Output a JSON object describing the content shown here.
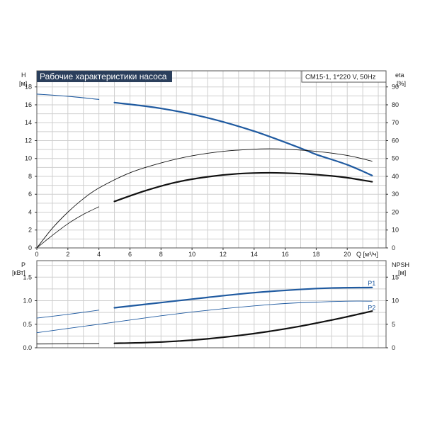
{
  "chart_data": [
    {
      "type": "line",
      "title": "Рабочие характеристики насоса",
      "info": "CM15-1, 1*220 V, 50Hz",
      "x_label": "Q [м³/ч]",
      "y_left_label": [
        "H",
        "[м]"
      ],
      "y_right_label": [
        "eta",
        "[%]"
      ],
      "x_ticks": [
        0,
        2,
        4,
        6,
        8,
        10,
        12,
        14,
        16,
        18,
        20
      ],
      "y_left_ticks": [
        0,
        2,
        4,
        6,
        8,
        10,
        12,
        14,
        16,
        18
      ],
      "y_right_ticks": [
        0,
        10,
        20,
        30,
        40,
        50,
        60,
        70,
        80,
        90
      ],
      "xlim": [
        0,
        22.5
      ],
      "ylim_left": [
        0,
        19.8
      ],
      "ylim_right": [
        0,
        99
      ],
      "grid": true,
      "series": [
        {
          "axis": "left",
          "color": "#1f5aa0",
          "width": 1.1,
          "points": [
            [
              0,
              17.2
            ],
            [
              2,
              16.95
            ],
            [
              4,
              16.6
            ]
          ]
        },
        {
          "axis": "left",
          "color": "#1f5aa0",
          "width": 2.2,
          "points": [
            [
              5,
              16.25
            ],
            [
              8,
              15.6
            ],
            [
              11,
              14.55
            ],
            [
              14,
              13.05
            ],
            [
              17,
              11.15
            ],
            [
              18,
              10.45
            ],
            [
              20,
              9.3
            ],
            [
              21.6,
              8.1
            ]
          ]
        },
        {
          "axis": "right",
          "color": "#111111",
          "width": 0.9,
          "points": [
            [
              0,
              0
            ],
            [
              1,
              11
            ],
            [
              2,
              20
            ],
            [
              3,
              27.5
            ],
            [
              4,
              33.5
            ],
            [
              6,
              42
            ],
            [
              8,
              47.5
            ],
            [
              10,
              51.5
            ],
            [
              12,
              54
            ],
            [
              14,
              55.2
            ],
            [
              15,
              55.4
            ],
            [
              16,
              55.2
            ],
            [
              18,
              54
            ],
            [
              20,
              51.7
            ],
            [
              21.6,
              48.5
            ]
          ]
        },
        {
          "axis": "left",
          "color": "#111111",
          "width": 0.8,
          "points": [
            [
              0,
              0
            ],
            [
              1,
              1.4
            ],
            [
              2,
              2.7
            ],
            [
              3,
              3.75
            ],
            [
              4,
              4.6
            ]
          ]
        },
        {
          "axis": "left",
          "color": "#111111",
          "width": 2.2,
          "points": [
            [
              5,
              5.2
            ],
            [
              7,
              6.4
            ],
            [
              9,
              7.35
            ],
            [
              11,
              7.95
            ],
            [
              13,
              8.3
            ],
            [
              15,
              8.4
            ],
            [
              17,
              8.3
            ],
            [
              19,
              8.05
            ],
            [
              20,
              7.85
            ],
            [
              21.6,
              7.4
            ]
          ]
        }
      ]
    },
    {
      "type": "line",
      "x_label": "",
      "y_left_label": [
        "P",
        "[кВт]"
      ],
      "y_right_label": [
        "NPSH",
        "[м]"
      ],
      "x_ticks": [],
      "y_left_ticks": [
        "0.0",
        "0.5",
        "1.0",
        "1.5"
      ],
      "y_left_tick_values": [
        0,
        0.5,
        1.0,
        1.5
      ],
      "y_right_ticks": [
        0,
        5,
        10,
        15
      ],
      "xlim": [
        0,
        22.5
      ],
      "ylim_left": [
        0,
        1.85
      ],
      "ylim_right": [
        0,
        18.5
      ],
      "grid": true,
      "series": [
        {
          "name": "P1",
          "axis": "left",
          "color": "#1f5aa0",
          "width": 0.9,
          "points": [
            [
              0,
              0.63
            ],
            [
              2,
              0.71
            ],
            [
              4,
              0.8
            ]
          ]
        },
        {
          "name": "P1",
          "axis": "left",
          "color": "#1f5aa0",
          "width": 2.2,
          "points": [
            [
              5,
              0.85
            ],
            [
              8,
              0.96
            ],
            [
              11,
              1.07
            ],
            [
              14,
              1.17
            ],
            [
              17,
              1.24
            ],
            [
              19,
              1.27
            ],
            [
              21.6,
              1.28
            ]
          ]
        },
        {
          "name": "P2",
          "axis": "left",
          "color": "#1f5aa0",
          "width": 0.9,
          "points": [
            [
              0,
              0.32
            ],
            [
              2,
              0.41
            ],
            [
              4,
              0.5
            ],
            [
              6,
              0.59
            ],
            [
              8,
              0.68
            ],
            [
              10,
              0.76
            ],
            [
              12,
              0.83
            ],
            [
              14,
              0.89
            ],
            [
              16,
              0.94
            ],
            [
              18,
              0.97
            ],
            [
              20,
              0.99
            ],
            [
              21.6,
              0.99
            ]
          ]
        },
        {
          "axis": "right",
          "color": "#111111",
          "width": 1.0,
          "points": [
            [
              0,
              0.8
            ],
            [
              2,
              0.85
            ],
            [
              4,
              0.9
            ]
          ]
        },
        {
          "axis": "right",
          "color": "#111111",
          "width": 2.2,
          "points": [
            [
              5,
              0.95
            ],
            [
              7,
              1.1
            ],
            [
              9,
              1.4
            ],
            [
              11,
              1.9
            ],
            [
              13,
              2.6
            ],
            [
              15,
              3.5
            ],
            [
              17,
              4.6
            ],
            [
              19,
              5.9
            ],
            [
              20,
              6.6
            ],
            [
              21.6,
              7.8
            ]
          ]
        }
      ],
      "labels": [
        {
          "text": "P1",
          "x": 21.6,
          "axis": "left",
          "y": 1.37,
          "color": "#1f5aa0"
        },
        {
          "text": "P2",
          "x": 21.6,
          "axis": "left",
          "y": 0.85,
          "color": "#1f5aa0"
        }
      ]
    }
  ]
}
